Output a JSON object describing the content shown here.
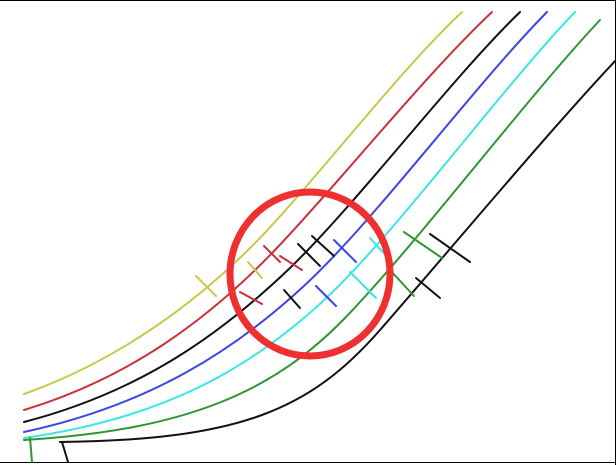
{
  "colors": {
    "yellow": "#c8c84a",
    "red": "#c8323c",
    "black": "#111111",
    "blue": "#3c46e6",
    "cyan": "#3ce6e6",
    "green": "#2e9632",
    "outer_black": "#111111",
    "highlight_circle": "#ee3030"
  },
  "curves": [
    {
      "id": "yellow",
      "color": "yellow"
    },
    {
      "id": "red",
      "color": "red"
    },
    {
      "id": "black",
      "color": "black"
    },
    {
      "id": "blue",
      "color": "blue"
    },
    {
      "id": "cyan",
      "color": "cyan"
    },
    {
      "id": "green",
      "color": "green"
    },
    {
      "id": "outer-black",
      "color": "outer_black"
    }
  ],
  "highlight": {
    "shape": "circle",
    "color": "highlight_circle"
  }
}
